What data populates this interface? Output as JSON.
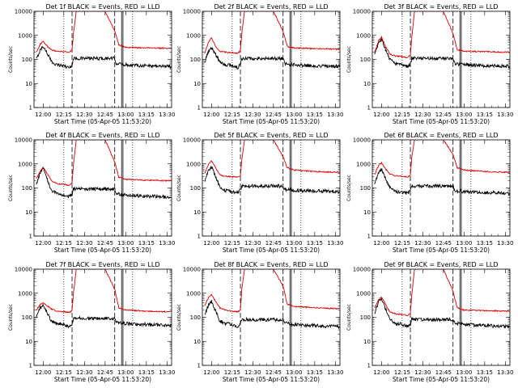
{
  "ylabel": "Counts/sec",
  "xlabel": "Start Time (05-Apr-05 11:53:20)",
  "x_ticks": [
    "12:00",
    "12:15",
    "12:30",
    "12:45",
    "13:00",
    "13:15",
    "13:30"
  ],
  "y_ticks": [
    "1",
    "10",
    "100",
    "1000",
    "10000"
  ],
  "colors": {
    "events": "#000000",
    "lld": "#dd0000"
  },
  "chart_data": [
    {
      "type": "line",
      "title": "Det 1f BLACK = Events, RED = LLD",
      "xlim": [
        "11:53:20",
        "13:33:20"
      ],
      "ylim": [
        1,
        10000
      ],
      "yscale": "log",
      "vlines": {
        "dotted": [
          "12:15",
          "13:05"
        ],
        "dashed": [
          "12:21",
          "12:52"
        ],
        "solid": [
          "12:57",
          "12:58"
        ]
      },
      "series": [
        {
          "color": "black",
          "x": [
            "11:55",
            "11:58",
            "12:00",
            "12:03",
            "12:06",
            "12:10",
            "12:15",
            "12:19",
            "12:21",
            "12:22",
            "12:52",
            "12:53",
            "12:55",
            "13:00",
            "13:15",
            "13:30",
            "13:33"
          ],
          "y": [
            100,
            250,
            350,
            180,
            80,
            60,
            55,
            45,
            60,
            110,
            110,
            70,
            65,
            60,
            55,
            52,
            50
          ]
        },
        {
          "color": "red",
          "x": [
            "11:55",
            "11:58",
            "12:00",
            "12:03",
            "12:06",
            "12:10",
            "12:15",
            "12:19",
            "12:21",
            "12:22",
            "12:24",
            "12:45",
            "12:52",
            "12:55",
            "13:00",
            "13:15",
            "13:30",
            "13:33"
          ],
          "y": [
            200,
            450,
            550,
            350,
            250,
            220,
            210,
            200,
            250,
            1200,
            10000,
            10000,
            1500,
            400,
            320,
            300,
            290,
            280
          ]
        }
      ]
    },
    {
      "type": "line",
      "title": "Det 2f BLACK = Events, RED = LLD",
      "xlim": [
        "11:53:20",
        "13:33:20"
      ],
      "ylim": [
        1,
        10000
      ],
      "yscale": "log",
      "vlines": {
        "dotted": [
          "12:15",
          "13:05"
        ],
        "dashed": [
          "12:21",
          "12:52"
        ],
        "solid": [
          "12:57",
          "12:58"
        ]
      },
      "series": [
        {
          "color": "black",
          "x": [
            "11:55",
            "11:58",
            "12:00",
            "12:03",
            "12:06",
            "12:10",
            "12:15",
            "12:19",
            "12:21",
            "12:22",
            "12:52",
            "12:53",
            "12:55",
            "13:00",
            "13:15",
            "13:30",
            "13:33"
          ],
          "y": [
            80,
            220,
            330,
            160,
            80,
            60,
            55,
            45,
            60,
            110,
            110,
            70,
            65,
            60,
            55,
            52,
            50
          ]
        },
        {
          "color": "red",
          "x": [
            "11:55",
            "11:58",
            "12:00",
            "12:03",
            "12:06",
            "12:10",
            "12:15",
            "12:19",
            "12:21",
            "12:22",
            "12:24",
            "12:45",
            "12:52",
            "12:55",
            "13:00",
            "13:15",
            "13:30",
            "13:33"
          ],
          "y": [
            180,
            550,
            800,
            350,
            220,
            200,
            190,
            180,
            230,
            1200,
            10000,
            10000,
            1500,
            350,
            300,
            280,
            270,
            260
          ]
        }
      ]
    },
    {
      "type": "line",
      "title": "Det 3f BLACK = Events, RED = LLD",
      "xlim": [
        "11:53:20",
        "13:33:20"
      ],
      "ylim": [
        1,
        10000
      ],
      "yscale": "log",
      "vlines": {
        "dotted": [
          "12:15",
          "13:05"
        ],
        "dashed": [
          "12:21",
          "12:52"
        ],
        "solid": [
          "12:57",
          "12:58"
        ]
      },
      "series": [
        {
          "color": "black",
          "x": [
            "11:55",
            "11:58",
            "12:00",
            "12:03",
            "12:06",
            "12:10",
            "12:15",
            "12:19",
            "12:21",
            "12:22",
            "12:52",
            "12:53",
            "12:55",
            "13:00",
            "13:15",
            "13:30",
            "13:33"
          ],
          "y": [
            150,
            500,
            700,
            250,
            100,
            70,
            60,
            50,
            65,
            110,
            110,
            70,
            65,
            60,
            55,
            52,
            50
          ]
        },
        {
          "color": "red",
          "x": [
            "11:55",
            "11:58",
            "12:00",
            "12:03",
            "12:06",
            "12:10",
            "12:15",
            "12:19",
            "12:21",
            "12:22",
            "12:24",
            "12:45",
            "12:52",
            "12:55",
            "13:00",
            "13:15",
            "13:30",
            "13:33"
          ],
          "y": [
            200,
            600,
            850,
            350,
            170,
            140,
            130,
            120,
            150,
            800,
            10000,
            10000,
            1200,
            250,
            220,
            210,
            200,
            200
          ]
        }
      ]
    },
    {
      "type": "line",
      "title": "Det 4f BLACK = Events, RED = LLD",
      "xlim": [
        "11:53:20",
        "13:33:20"
      ],
      "ylim": [
        1,
        10000
      ],
      "yscale": "log",
      "vlines": {
        "dotted": [
          "12:15",
          "13:05"
        ],
        "dashed": [
          "12:21",
          "12:52"
        ],
        "solid": [
          "12:57",
          "12:58"
        ]
      },
      "series": [
        {
          "color": "black",
          "x": [
            "11:55",
            "11:58",
            "12:00",
            "12:03",
            "12:06",
            "12:10",
            "12:15",
            "12:19",
            "12:21",
            "12:22",
            "12:52",
            "12:53",
            "12:55",
            "13:00",
            "13:15",
            "13:30",
            "13:33"
          ],
          "y": [
            150,
            450,
            650,
            220,
            80,
            55,
            50,
            45,
            55,
            90,
            90,
            60,
            55,
            50,
            45,
            42,
            40
          ]
        },
        {
          "color": "red",
          "x": [
            "11:55",
            "11:58",
            "12:00",
            "12:03",
            "12:06",
            "12:10",
            "12:15",
            "12:19",
            "12:21",
            "12:22",
            "12:24",
            "12:45",
            "12:52",
            "12:55",
            "13:00",
            "13:15",
            "13:30",
            "13:33"
          ],
          "y": [
            250,
            500,
            700,
            400,
            200,
            150,
            140,
            130,
            160,
            900,
            10000,
            10000,
            1200,
            280,
            230,
            210,
            200,
            200
          ]
        }
      ]
    },
    {
      "type": "line",
      "title": "Det 5f BLACK = Events, RED = LLD",
      "xlim": [
        "11:53:20",
        "13:33:20"
      ],
      "ylim": [
        1,
        10000
      ],
      "yscale": "log",
      "vlines": {
        "dotted": [
          "12:15",
          "13:05"
        ],
        "dashed": [
          "12:21",
          "12:52"
        ],
        "solid": [
          "12:57",
          "12:58"
        ]
      },
      "series": [
        {
          "color": "black",
          "x": [
            "11:55",
            "11:58",
            "12:00",
            "12:03",
            "12:06",
            "12:10",
            "12:15",
            "12:19",
            "12:21",
            "12:22",
            "12:52",
            "12:53",
            "12:55",
            "13:00",
            "13:15",
            "13:30",
            "13:33"
          ],
          "y": [
            200,
            550,
            750,
            300,
            110,
            80,
            70,
            65,
            80,
            120,
            120,
            90,
            85,
            80,
            75,
            72,
            70
          ]
        },
        {
          "color": "red",
          "x": [
            "11:55",
            "11:58",
            "12:00",
            "12:03",
            "12:06",
            "12:10",
            "12:15",
            "12:19",
            "12:21",
            "12:22",
            "12:24",
            "12:45",
            "12:52",
            "12:55",
            "13:00",
            "13:15",
            "13:30",
            "13:33"
          ],
          "y": [
            400,
            1000,
            1300,
            700,
            350,
            300,
            290,
            280,
            320,
            1500,
            10000,
            10000,
            2000,
            700,
            550,
            480,
            450,
            450
          ]
        }
      ]
    },
    {
      "type": "line",
      "title": "Det 6f BLACK = Events, RED = LLD",
      "xlim": [
        "11:53:20",
        "13:33:20"
      ],
      "ylim": [
        1,
        10000
      ],
      "yscale": "log",
      "vlines": {
        "dotted": [
          "12:15",
          "13:05"
        ],
        "dashed": [
          "12:21",
          "12:52"
        ],
        "solid": [
          "12:57",
          "12:58"
        ]
      },
      "series": [
        {
          "color": "black",
          "x": [
            "11:55",
            "11:58",
            "12:00",
            "12:03",
            "12:06",
            "12:10",
            "12:15",
            "12:19",
            "12:21",
            "12:22",
            "12:52",
            "12:53",
            "12:55",
            "13:00",
            "13:15",
            "13:30",
            "13:33"
          ],
          "y": [
            150,
            450,
            600,
            250,
            100,
            70,
            65,
            60,
            75,
            120,
            120,
            80,
            75,
            70,
            65,
            62,
            60
          ]
        },
        {
          "color": "red",
          "x": [
            "11:55",
            "11:58",
            "12:00",
            "12:03",
            "12:06",
            "12:10",
            "12:15",
            "12:19",
            "12:21",
            "12:22",
            "12:24",
            "12:45",
            "12:52",
            "12:55",
            "13:00",
            "13:15",
            "13:30",
            "13:33"
          ],
          "y": [
            350,
            900,
            1100,
            600,
            380,
            320,
            300,
            290,
            330,
            1800,
            10000,
            10000,
            2500,
            700,
            550,
            480,
            450,
            450
          ]
        }
      ]
    },
    {
      "type": "line",
      "title": "Det 7f BLACK = Events, RED = LLD",
      "xlim": [
        "11:53:20",
        "13:33:20"
      ],
      "ylim": [
        1,
        10000
      ],
      "yscale": "log",
      "vlines": {
        "dotted": [
          "12:15",
          "13:05"
        ],
        "dashed": [
          "12:21",
          "12:52"
        ],
        "solid": [
          "12:57",
          "12:58"
        ]
      },
      "series": [
        {
          "color": "black",
          "x": [
            "11:55",
            "11:58",
            "12:00",
            "12:03",
            "12:06",
            "12:10",
            "12:15",
            "12:19",
            "12:21",
            "12:22",
            "12:52",
            "12:53",
            "12:55",
            "13:00",
            "13:15",
            "13:30",
            "13:33"
          ],
          "y": [
            100,
            250,
            300,
            150,
            70,
            55,
            50,
            40,
            55,
            90,
            90,
            65,
            60,
            55,
            50,
            48,
            45
          ]
        },
        {
          "color": "red",
          "x": [
            "11:55",
            "11:58",
            "12:00",
            "12:03",
            "12:06",
            "12:10",
            "12:15",
            "12:19",
            "12:21",
            "12:22",
            "12:24",
            "12:45",
            "12:52",
            "12:55",
            "13:00",
            "13:15",
            "13:30",
            "13:33"
          ],
          "y": [
            200,
            350,
            400,
            300,
            220,
            180,
            170,
            160,
            190,
            1000,
            10000,
            10000,
            1500,
            250,
            200,
            180,
            170,
            170
          ]
        }
      ]
    },
    {
      "type": "line",
      "title": "Det 8f BLACK = Events, RED = LLD",
      "xlim": [
        "11:53:20",
        "13:33:20"
      ],
      "ylim": [
        1,
        10000
      ],
      "yscale": "log",
      "vlines": {
        "dotted": [
          "12:15",
          "13:05"
        ],
        "dashed": [
          "12:21",
          "12:52"
        ],
        "solid": [
          "12:57",
          "12:58"
        ]
      },
      "series": [
        {
          "color": "black",
          "x": [
            "11:55",
            "11:58",
            "12:00",
            "12:03",
            "12:06",
            "12:10",
            "12:15",
            "12:19",
            "12:21",
            "12:22",
            "12:52",
            "12:53",
            "12:55",
            "13:00",
            "13:15",
            "13:30",
            "13:33"
          ],
          "y": [
            120,
            350,
            450,
            180,
            70,
            55,
            50,
            40,
            50,
            80,
            80,
            60,
            55,
            50,
            45,
            42,
            40
          ]
        },
        {
          "color": "red",
          "x": [
            "11:55",
            "11:58",
            "12:00",
            "12:03",
            "12:06",
            "12:10",
            "12:15",
            "12:19",
            "12:21",
            "12:22",
            "12:24",
            "12:45",
            "12:52",
            "12:55",
            "13:00",
            "13:15",
            "13:30",
            "13:33"
          ],
          "y": [
            300,
            700,
            900,
            450,
            250,
            200,
            180,
            170,
            200,
            1500,
            10000,
            10000,
            2000,
            350,
            280,
            250,
            230,
            230
          ]
        }
      ]
    },
    {
      "type": "line",
      "title": "Det 9f BLACK = Events, RED = LLD",
      "xlim": [
        "11:53:20",
        "13:33:20"
      ],
      "ylim": [
        1,
        10000
      ],
      "yscale": "log",
      "vlines": {
        "dotted": [
          "12:15",
          "13:05"
        ],
        "dashed": [
          "12:21",
          "12:52"
        ],
        "solid": [
          "12:57",
          "12:58"
        ]
      },
      "series": [
        {
          "color": "black",
          "x": [
            "11:55",
            "11:58",
            "12:00",
            "12:03",
            "12:06",
            "12:10",
            "12:15",
            "12:19",
            "12:21",
            "12:22",
            "12:52",
            "12:53",
            "12:55",
            "13:00",
            "13:15",
            "13:30",
            "13:33"
          ],
          "y": [
            150,
            450,
            600,
            220,
            80,
            55,
            50,
            40,
            50,
            80,
            80,
            60,
            55,
            50,
            45,
            42,
            40
          ]
        },
        {
          "color": "red",
          "x": [
            "11:55",
            "11:58",
            "12:00",
            "12:03",
            "12:06",
            "12:10",
            "12:15",
            "12:19",
            "12:21",
            "12:22",
            "12:24",
            "12:45",
            "12:52",
            "12:55",
            "13:00",
            "13:15",
            "13:30",
            "13:33"
          ],
          "y": [
            250,
            550,
            700,
            350,
            170,
            140,
            130,
            120,
            150,
            800,
            10000,
            10000,
            1200,
            250,
            200,
            190,
            180,
            180
          ]
        }
      ]
    }
  ]
}
